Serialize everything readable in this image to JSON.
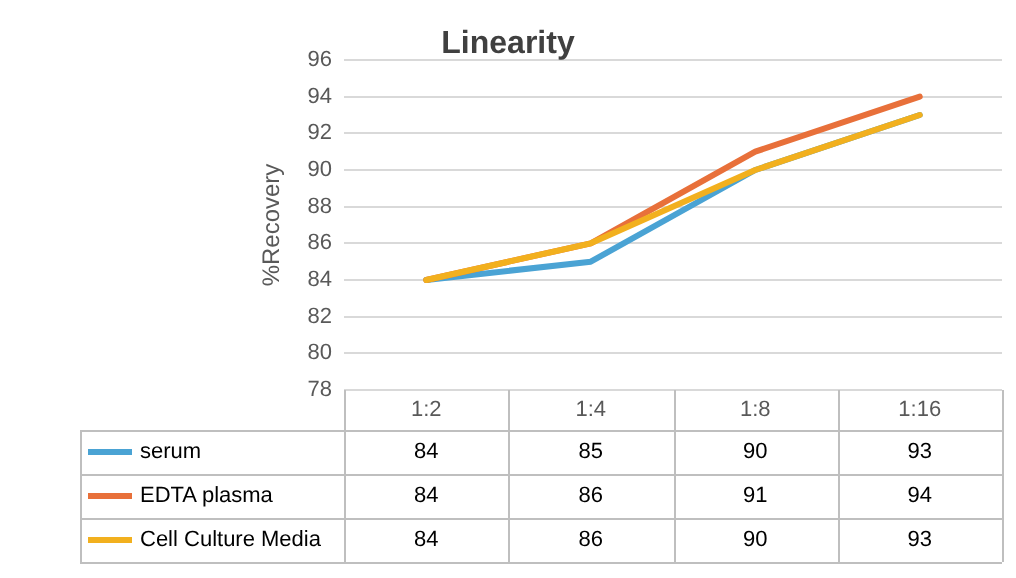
{
  "chart_data": {
    "type": "line",
    "title": "Linearity",
    "ylabel": "%Recovery",
    "categories": [
      "1:2",
      "1:4",
      "1:8",
      "1:16"
    ],
    "series": [
      {
        "name": "serum",
        "color": "#4aa3d4",
        "values": [
          84,
          85,
          90,
          93
        ]
      },
      {
        "name": "EDTA plasma",
        "color": "#e8703a",
        "values": [
          84,
          86,
          91,
          94
        ]
      },
      {
        "name": "Cell Culture Media",
        "color": "#f2b01e",
        "values": [
          84,
          86,
          90,
          93
        ]
      }
    ],
    "ylim": [
      78,
      96
    ],
    "yticks": [
      78,
      80,
      82,
      84,
      86,
      88,
      90,
      92,
      94,
      96
    ],
    "grid": "y",
    "legend": "bottom",
    "data_labels": true,
    "marker": "none",
    "line_style": "solid"
  }
}
